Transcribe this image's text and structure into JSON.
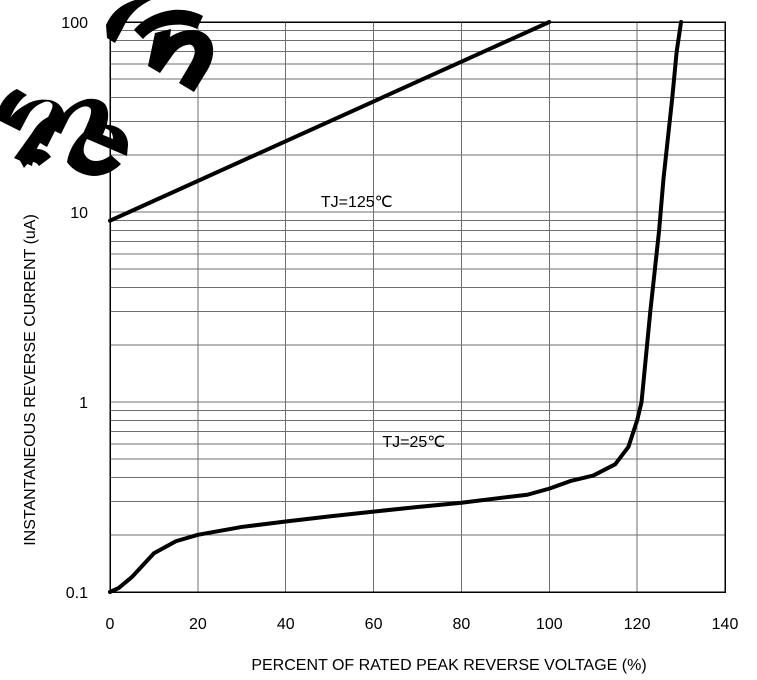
{
  "chart_data": {
    "type": "line",
    "title": "",
    "xlabel": "PERCENT OF RATED PEAK REVERSE VOLTAGE (%)",
    "ylabel": "INSTANTANEOUS REVERSE CURRENT (uA)",
    "xlim": [
      0,
      140
    ],
    "ylim": [
      0.1,
      100
    ],
    "xscale": "linear",
    "yscale": "log",
    "grid": true,
    "legend": "none",
    "x_ticks": [
      "0",
      "20",
      "40",
      "60",
      "80",
      "100",
      "120",
      "140"
    ],
    "y_ticks": [
      "0.1",
      "1",
      "10",
      "100"
    ],
    "series": [
      {
        "name": "TJ=125℃",
        "label": "TJ=125℃",
        "x": [
          0,
          100
        ],
        "y": [
          9.0,
          100.0
        ]
      },
      {
        "name": "TJ=25℃",
        "label": "TJ=25℃",
        "x": [
          0,
          2,
          5,
          10,
          15,
          20,
          30,
          40,
          50,
          60,
          70,
          80,
          90,
          95,
          100,
          105,
          110,
          115,
          118,
          120,
          121,
          123,
          125,
          126,
          128,
          129,
          130
        ],
        "y": [
          0.1,
          0.105,
          0.12,
          0.16,
          0.185,
          0.2,
          0.22,
          0.235,
          0.25,
          0.265,
          0.28,
          0.295,
          0.315,
          0.325,
          0.35,
          0.385,
          0.41,
          0.47,
          0.58,
          0.8,
          1.0,
          3.0,
          8.0,
          15.0,
          40.0,
          70.0,
          100.0
        ]
      }
    ],
    "colors": {
      "line": "#000000",
      "grid": "#6f6f6f",
      "background": "#ffffff"
    }
  },
  "watermark": {
    "text": "ment"
  }
}
